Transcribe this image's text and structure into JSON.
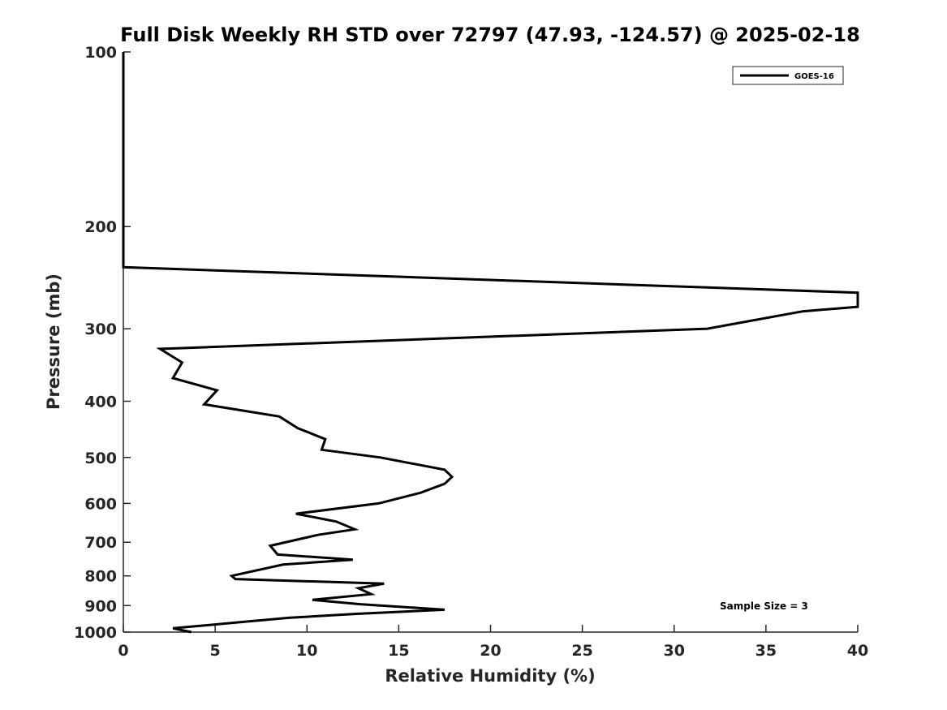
{
  "chart_data": {
    "type": "line",
    "title": "Full Disk Weekly RH STD over 72797 (47.93, -124.57) @ 2025-02-18",
    "xlabel": "Relative Humidity (%)",
    "ylabel": "Pressure (mb)",
    "xlim": [
      0,
      40
    ],
    "ylim": [
      100,
      1000
    ],
    "yscale": "log",
    "y_reversed": true,
    "grid": false,
    "legend_position": "top-right",
    "x_ticks": [
      "0",
      "5",
      "10",
      "15",
      "20",
      "25",
      "30",
      "35",
      "40"
    ],
    "y_ticks": [
      "100",
      "200",
      "300",
      "400",
      "500",
      "600",
      "700",
      "800",
      "900",
      "1000"
    ],
    "annotation": "Sample Size = 3",
    "series": [
      {
        "name": "GOES-16",
        "color": "#000000",
        "points": [
          [
            0,
            100
          ],
          [
            0,
            175
          ],
          [
            0,
            235
          ],
          [
            40,
            260
          ],
          [
            40,
            275
          ],
          [
            37,
            280
          ],
          [
            31.8,
            300
          ],
          [
            2,
            325
          ],
          [
            3.2,
            343
          ],
          [
            2.7,
            365
          ],
          [
            5.1,
            383
          ],
          [
            4.4,
            405
          ],
          [
            8.5,
            425
          ],
          [
            9.5,
            445
          ],
          [
            11,
            465
          ],
          [
            10.8,
            485
          ],
          [
            14,
            500
          ],
          [
            17.5,
            525
          ],
          [
            17.9,
            540
          ],
          [
            17.5,
            555
          ],
          [
            16.2,
            575
          ],
          [
            13.9,
            600
          ],
          [
            9.4,
            625
          ],
          [
            11.6,
            645
          ],
          [
            12.6,
            665
          ],
          [
            10.6,
            680
          ],
          [
            8,
            710
          ],
          [
            8.4,
            735
          ],
          [
            12.5,
            750
          ],
          [
            8.7,
            765
          ],
          [
            5.9,
            800
          ],
          [
            6.1,
            810
          ],
          [
            14.2,
            825
          ],
          [
            12.8,
            840
          ],
          [
            13.5,
            860
          ],
          [
            10.3,
            880
          ],
          [
            12.9,
            895
          ],
          [
            17.5,
            915
          ],
          [
            12.7,
            930
          ],
          [
            9,
            945
          ],
          [
            6.6,
            960
          ],
          [
            2.7,
            985
          ],
          [
            3.7,
            1000
          ]
        ]
      }
    ]
  }
}
